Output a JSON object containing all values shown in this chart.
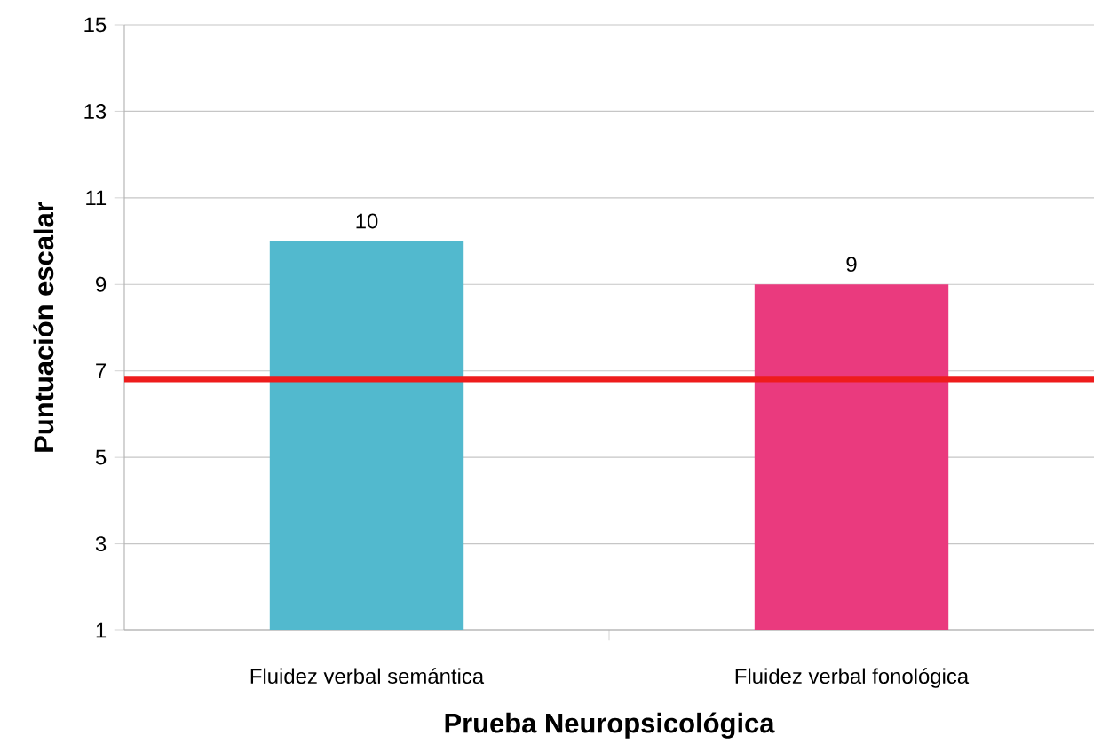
{
  "chart_data": {
    "type": "bar",
    "xlabel": "Prueba Neuropsicológica",
    "ylabel": "Puntuación escalar",
    "categories": [
      "Fluidez verbal semántica",
      "Fluidez verbal fonológica"
    ],
    "values": [
      10,
      9
    ],
    "colors": [
      "#52b9ce",
      "#ea3a7e"
    ],
    "ylim": [
      1,
      15
    ],
    "yticks": [
      1,
      3,
      5,
      7,
      9,
      11,
      13,
      15
    ],
    "grid": "y",
    "data_labels": true,
    "ref_lines": [
      {
        "axis": "y",
        "value": 6.8,
        "color": "#ee1c1c"
      }
    ]
  }
}
